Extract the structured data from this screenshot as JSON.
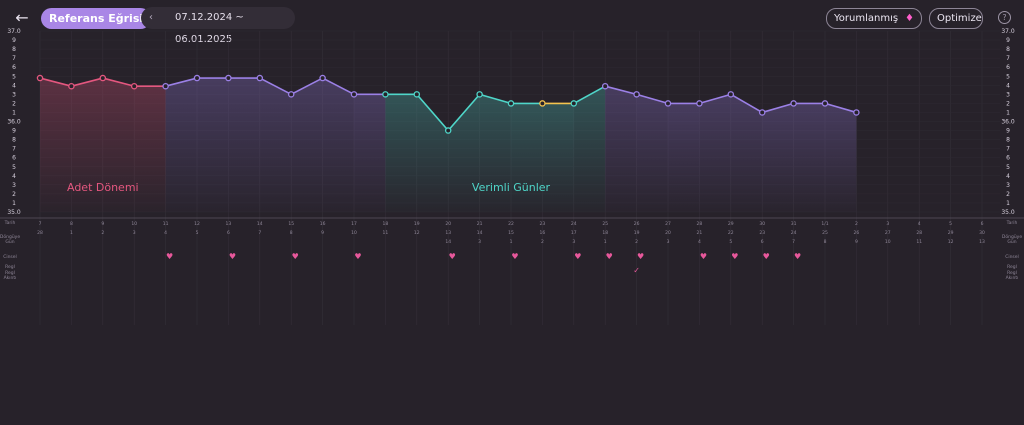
{
  "header": {
    "back_icon": "arrow-left-icon",
    "reference_button": "Referans Eğrisi",
    "date_range": "07.12.2024 ~ 06.01.2025",
    "date_arrow_icon": "chevron-left-icon",
    "interpreted_button": "Yorumlanmış",
    "interpreted_icon": "gem-icon",
    "optimize_button": "Optimize",
    "help_icon": "question-circle-icon"
  },
  "colors": {
    "background": "#27222a",
    "period": "#e4577f",
    "normal": "#9b80e6",
    "fertile": "#4fd6c9",
    "ovulation": "#f4c34f",
    "marker": "#e7589b"
  },
  "chart_data": {
    "type": "line",
    "y_axis_labels_left": [
      "37.0",
      "9",
      "8",
      "7",
      "6",
      "5",
      "4",
      "3",
      "2",
      "1",
      "36.0",
      "9",
      "8",
      "7",
      "6",
      "5",
      "4",
      "3",
      "2",
      "1",
      "35.0"
    ],
    "y_axis_labels_right": [
      "37.0",
      "9",
      "8",
      "7",
      "6",
      "5",
      "4",
      "3",
      "2",
      "1",
      "36.0",
      "9",
      "8",
      "7",
      "6",
      "5",
      "4",
      "3",
      "2",
      "1",
      "35.0"
    ],
    "ylim": [
      35.0,
      37.0
    ],
    "zones": [
      {
        "label": "Adet Dönemi",
        "from": 0,
        "to": 4
      },
      {
        "label": "Verimli Günler",
        "from": 12,
        "to": 18
      }
    ],
    "dates": [
      "7",
      "8",
      "9",
      "10",
      "11",
      "12",
      "13",
      "14",
      "15",
      "16",
      "17",
      "18",
      "19",
      "20",
      "21",
      "22",
      "23",
      "24",
      "25",
      "26",
      "27",
      "28",
      "29",
      "30",
      "31",
      "1/1",
      "2",
      "3",
      "4",
      "5",
      "6"
    ],
    "cycle_days": [
      "28",
      "1",
      "2",
      "3",
      "4",
      "5",
      "6",
      "7",
      "8",
      "9",
      "10",
      "11",
      "12",
      "13",
      "14",
      "15",
      "16",
      "17",
      "18",
      "19",
      "20",
      "21",
      "22",
      "23",
      "24",
      "25",
      "26",
      "27",
      "28",
      "29",
      "30"
    ],
    "cycle_days2": [
      "",
      "",
      "",
      "",
      "",
      "",
      "",
      "",
      "",
      "",
      "",
      "",
      "",
      "14",
      "3",
      "1",
      "2",
      "3",
      "1",
      "2",
      "3",
      "4",
      "5",
      "6",
      "7",
      "8",
      "9",
      "10",
      "11",
      "12",
      "13"
    ],
    "temps": [
      36.48,
      36.39,
      36.48,
      36.39,
      36.39,
      36.48,
      36.48,
      36.48,
      36.3,
      36.48,
      36.3,
      36.3,
      36.3,
      35.9,
      36.3,
      36.2,
      36.2,
      36.2,
      36.39,
      36.3,
      36.2,
      36.2,
      36.3,
      36.1,
      36.2,
      36.2,
      36.1,
      null,
      null,
      null,
      null
    ],
    "phases": [
      "period",
      "period",
      "period",
      "period",
      "normal",
      "normal",
      "normal",
      "normal",
      "normal",
      "normal",
      "normal",
      "fertile",
      "fertile",
      "fertile",
      "fertile",
      "fertile",
      "ovulation",
      "fertile",
      "normal",
      "normal",
      "normal",
      "normal",
      "normal",
      "normal",
      "normal",
      "normal",
      "normal",
      "",
      "",
      "",
      ""
    ],
    "intercourse_days": [
      4,
      6,
      8,
      10,
      13,
      15,
      17,
      18,
      19,
      21,
      22,
      23,
      24
    ],
    "check_days": [
      19
    ],
    "row_labels_left": [
      "Tarih",
      "Döngüye\nGün",
      "Cinsel",
      "Regl",
      "Regl\nAkıntı"
    ],
    "row_labels_right": [
      "Tarih",
      "Döngüye\nGün",
      "Cinsel",
      "Regl",
      "Regl\nAkıntı"
    ]
  }
}
